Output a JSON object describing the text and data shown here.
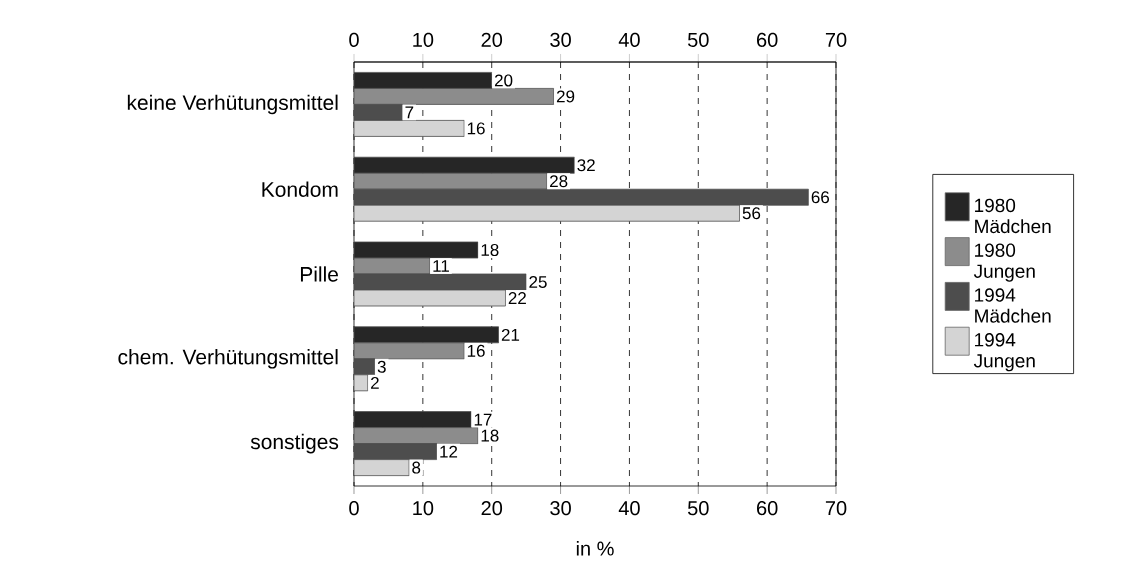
{
  "chart_data": {
    "type": "bar",
    "orientation": "horizontal",
    "xlabel": "in %",
    "categories": [
      "keine Verhütungsmittel",
      "Kondom",
      "Pille",
      "chem. Verhütungsmittel",
      "sonstiges"
    ],
    "series": [
      {
        "name": "1980 Mädchen",
        "color": "#262626",
        "values": [
          20,
          32,
          18,
          21,
          17
        ]
      },
      {
        "name": "1980 Jungen",
        "color": "#8c8c8c",
        "values": [
          29,
          28,
          11,
          16,
          18
        ]
      },
      {
        "name": "1994 Mädchen",
        "color": "#4d4d4d",
        "values": [
          7,
          66,
          25,
          3,
          12
        ]
      },
      {
        "name": "1994 Jungen",
        "color": "#d4d4d4",
        "values": [
          16,
          56,
          22,
          2,
          8
        ]
      }
    ],
    "xlim": [
      0,
      70
    ],
    "xticks": [
      0,
      10,
      20,
      30,
      40,
      50,
      60,
      70
    ],
    "x2lim": [
      0,
      70
    ],
    "x2ticks": [
      0,
      10,
      20,
      30,
      40,
      50,
      60,
      70
    ],
    "grid": "x",
    "legend": "right",
    "data_labels": true
  }
}
